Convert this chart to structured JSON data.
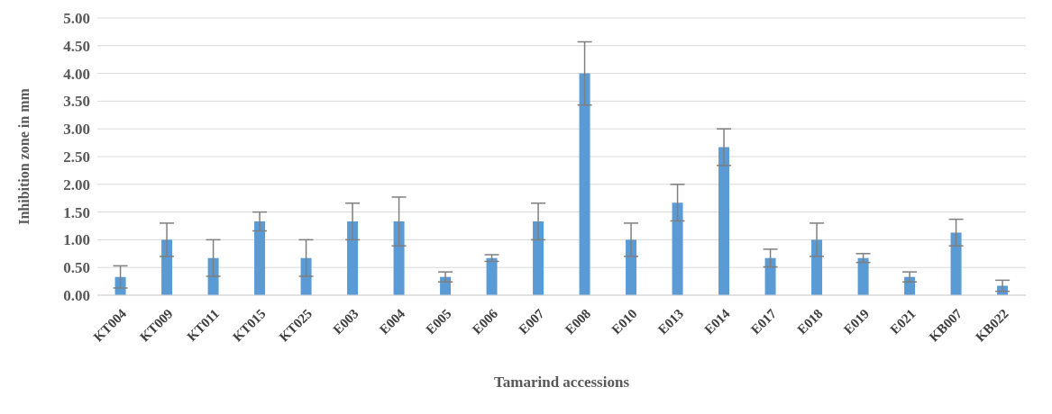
{
  "chart_data": {
    "type": "bar",
    "xlabel": "Tamarind accessions",
    "ylabel": "Inhibition zone in mm",
    "categories": [
      "KT004",
      "KT009",
      "KT011",
      "KT015",
      "KT025",
      "E003",
      "E004",
      "E005",
      "E006",
      "E007",
      "E008",
      "E010",
      "E013",
      "E014",
      "E017",
      "E018",
      "E019",
      "E021",
      "KB007",
      "KB022"
    ],
    "values": [
      0.33,
      1.0,
      0.67,
      1.33,
      0.67,
      1.33,
      1.33,
      0.33,
      0.67,
      1.33,
      4.0,
      1.0,
      1.67,
      2.67,
      0.67,
      1.0,
      0.67,
      0.33,
      1.13,
      0.17
    ],
    "errors": [
      0.2,
      0.3,
      0.33,
      0.17,
      0.33,
      0.33,
      0.44,
      0.09,
      0.06,
      0.33,
      0.57,
      0.3,
      0.33,
      0.33,
      0.16,
      0.3,
      0.08,
      0.09,
      0.24,
      0.1
    ],
    "color": "#5b9bd5",
    "ylim": [
      0,
      5
    ],
    "yticks": [
      {
        "value": 0,
        "label": "0.00"
      },
      {
        "value": 0.5,
        "label": "0.50"
      },
      {
        "value": 1,
        "label": "1.00"
      },
      {
        "value": 1.5,
        "label": "1.50"
      },
      {
        "value": 2,
        "label": "2.00"
      },
      {
        "value": 2.5,
        "label": "2.50"
      },
      {
        "value": 3,
        "label": "3.00"
      },
      {
        "value": 3.5,
        "label": "3.50"
      },
      {
        "value": 4,
        "label": "4.00"
      },
      {
        "value": 4.5,
        "label": "4.50"
      },
      {
        "value": 5,
        "label": "5.00"
      }
    ],
    "grid": "y",
    "legend": false
  }
}
